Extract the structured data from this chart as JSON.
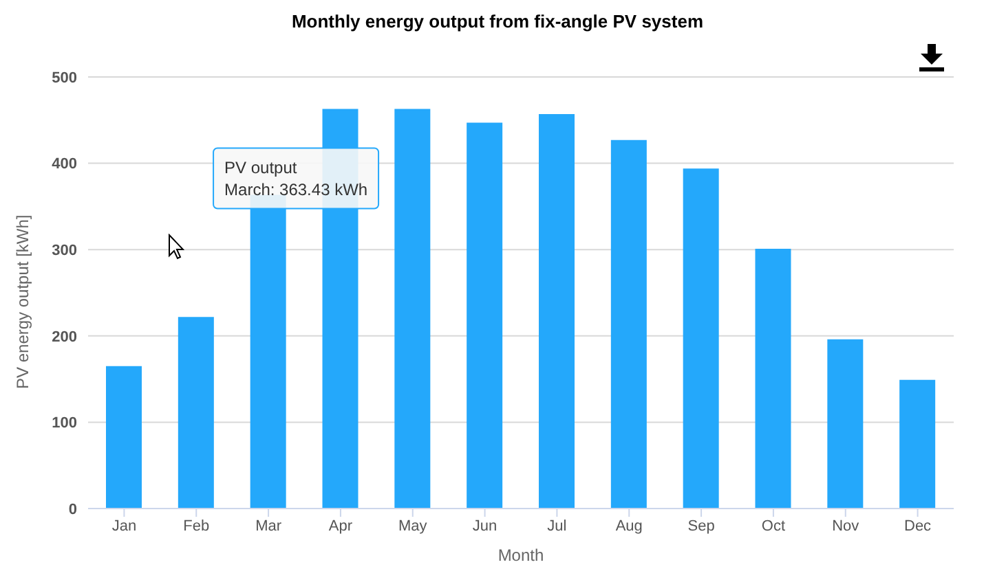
{
  "chart_data": {
    "type": "bar",
    "title": "Monthly energy output from fix-angle PV system",
    "xlabel": "Month",
    "ylabel": "PV energy output [kWh]",
    "categories": [
      "Jan",
      "Feb",
      "Mar",
      "Apr",
      "May",
      "Jun",
      "Jul",
      "Aug",
      "Sep",
      "Oct",
      "Nov",
      "Dec"
    ],
    "values": [
      165,
      222,
      363.43,
      463,
      463,
      447,
      457,
      427,
      394,
      301,
      196,
      149
    ],
    "color": "#24a8fb",
    "ylim": [
      0,
      500
    ],
    "yticks": [
      0,
      100,
      200,
      300,
      400,
      500
    ],
    "grid": "y",
    "legend": false,
    "annotations": [
      {
        "text": "PV output\nMarch: 363.43 kWh",
        "x": "Mar",
        "y": 363.43
      }
    ]
  }
}
